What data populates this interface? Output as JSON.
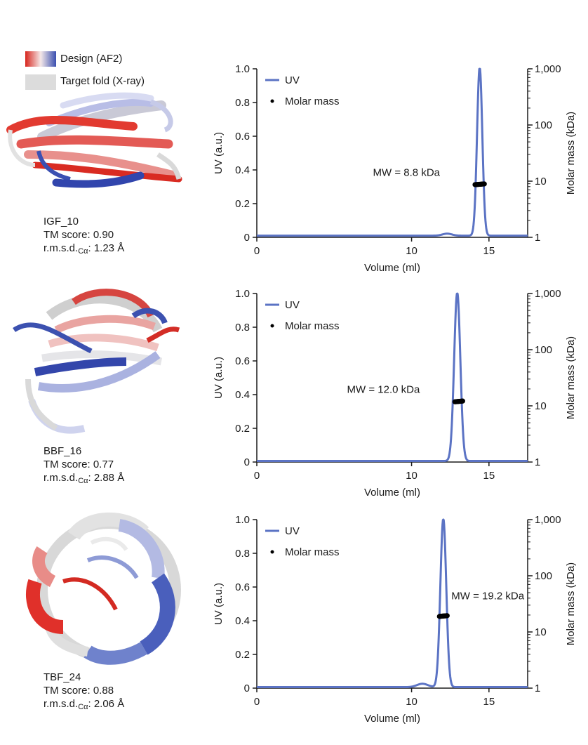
{
  "legend": {
    "design_label": "Design (AF2)",
    "target_label": "Target fold (X-ray)",
    "design_gradient": [
      "#d7261e",
      "#f5e8e8",
      "#3a4fb0"
    ],
    "target_color": "#dcdcdc"
  },
  "colors": {
    "uv_line": "#5b73c4",
    "molar_mass": "#000000",
    "axis": "#1a1a1a"
  },
  "proteins": [
    {
      "name": "IGF_10",
      "tm_label": "TM score: 0.90",
      "rmsd_prefix": "r.m.s.d.",
      "rmsd_sub": "Cα",
      "rmsd_value": ": 1.23 Å"
    },
    {
      "name": "BBF_16",
      "tm_label": "TM score: 0.77",
      "rmsd_prefix": "r.m.s.d.",
      "rmsd_sub": "Cα",
      "rmsd_value": ": 2.88 Å"
    },
    {
      "name": "TBF_24",
      "tm_label": "TM score: 0.88",
      "rmsd_prefix": "r.m.s.d.",
      "rmsd_sub": "Cα",
      "rmsd_value": ": 2.06 Å"
    }
  ],
  "chart_data": [
    {
      "type": "line",
      "xlabel": "Volume (ml)",
      "ylabel": "UV (a.u.)",
      "y2label": "Molar mass (kDa)",
      "xlim": [
        0,
        17.5
      ],
      "ylim": [
        0,
        1.0
      ],
      "y2lim": [
        1,
        1000
      ],
      "y2_scale": "log",
      "xticks": [
        0,
        10,
        15
      ],
      "yticks": [
        0,
        0.2,
        0.4,
        0.6,
        0.8,
        1.0
      ],
      "ytick_labels": [
        "0",
        "0.2",
        "0.4",
        "0.6",
        "0.8",
        "1.0"
      ],
      "y2ticks": [
        1,
        10,
        100,
        1000
      ],
      "y2tick_labels": [
        "1",
        "10",
        "100",
        "1,000"
      ],
      "series": [
        {
          "name": "UV",
          "peak_volume": 14.4,
          "peak_height": 1.0,
          "peak_width": 0.17,
          "baseline": 0.01,
          "minor_bumps": [
            [
              12.3,
              0.012,
              0.3
            ]
          ]
        },
        {
          "name": "Molar mass",
          "marker": "dot",
          "x_range": [
            14.1,
            14.7
          ],
          "value": 8.8
        }
      ],
      "annotation": "MW = 8.8 kDa",
      "legend": "top-left"
    },
    {
      "type": "line",
      "xlabel": "Volume (ml)",
      "ylabel": "UV (a.u.)",
      "y2label": "Molar mass (kDa)",
      "xlim": [
        0,
        17.5
      ],
      "ylim": [
        0,
        1.0
      ],
      "y2lim": [
        1,
        1000
      ],
      "y2_scale": "log",
      "xticks": [
        0,
        10,
        15
      ],
      "yticks": [
        0,
        0.2,
        0.4,
        0.6,
        0.8,
        1.0
      ],
      "ytick_labels": [
        "0",
        "0.2",
        "0.4",
        "0.6",
        "0.8",
        "1.0"
      ],
      "y2ticks": [
        1,
        10,
        100,
        1000
      ],
      "y2tick_labels": [
        "1",
        "10",
        "100",
        "1,000"
      ],
      "series": [
        {
          "name": "UV",
          "peak_volume": 12.95,
          "peak_height": 1.0,
          "peak_width": 0.2,
          "baseline": 0.006,
          "minor_bumps": []
        },
        {
          "name": "Molar mass",
          "marker": "dot",
          "x_range": [
            12.8,
            13.3
          ],
          "value": 12.0
        }
      ],
      "annotation": "MW = 12.0 kDa",
      "legend": "top-left"
    },
    {
      "type": "line",
      "xlabel": "Volume (ml)",
      "ylabel": "UV (a.u.)",
      "y2label": "Molar mass (kDa)",
      "xlim": [
        0,
        17.5
      ],
      "ylim": [
        0,
        1.0
      ],
      "y2lim": [
        1,
        1000
      ],
      "y2_scale": "log",
      "xticks": [
        0,
        10,
        15
      ],
      "yticks": [
        0,
        0.2,
        0.4,
        0.6,
        0.8,
        1.0
      ],
      "ytick_labels": [
        "0",
        "0.2",
        "0.4",
        "0.6",
        "0.8",
        "1.0"
      ],
      "y2ticks": [
        1,
        10,
        100,
        1000
      ],
      "y2tick_labels": [
        "1",
        "10",
        "100",
        "1,000"
      ],
      "series": [
        {
          "name": "UV",
          "peak_volume": 12.05,
          "peak_height": 1.0,
          "peak_width": 0.19,
          "baseline": 0.006,
          "minor_bumps": [
            [
              10.7,
              0.02,
              0.35
            ]
          ]
        },
        {
          "name": "Molar mass",
          "marker": "dot",
          "x_range": [
            11.8,
            12.3
          ],
          "value": 19.2
        }
      ],
      "annotation": "MW = 19.2 kDa",
      "legend": "top-left"
    }
  ]
}
